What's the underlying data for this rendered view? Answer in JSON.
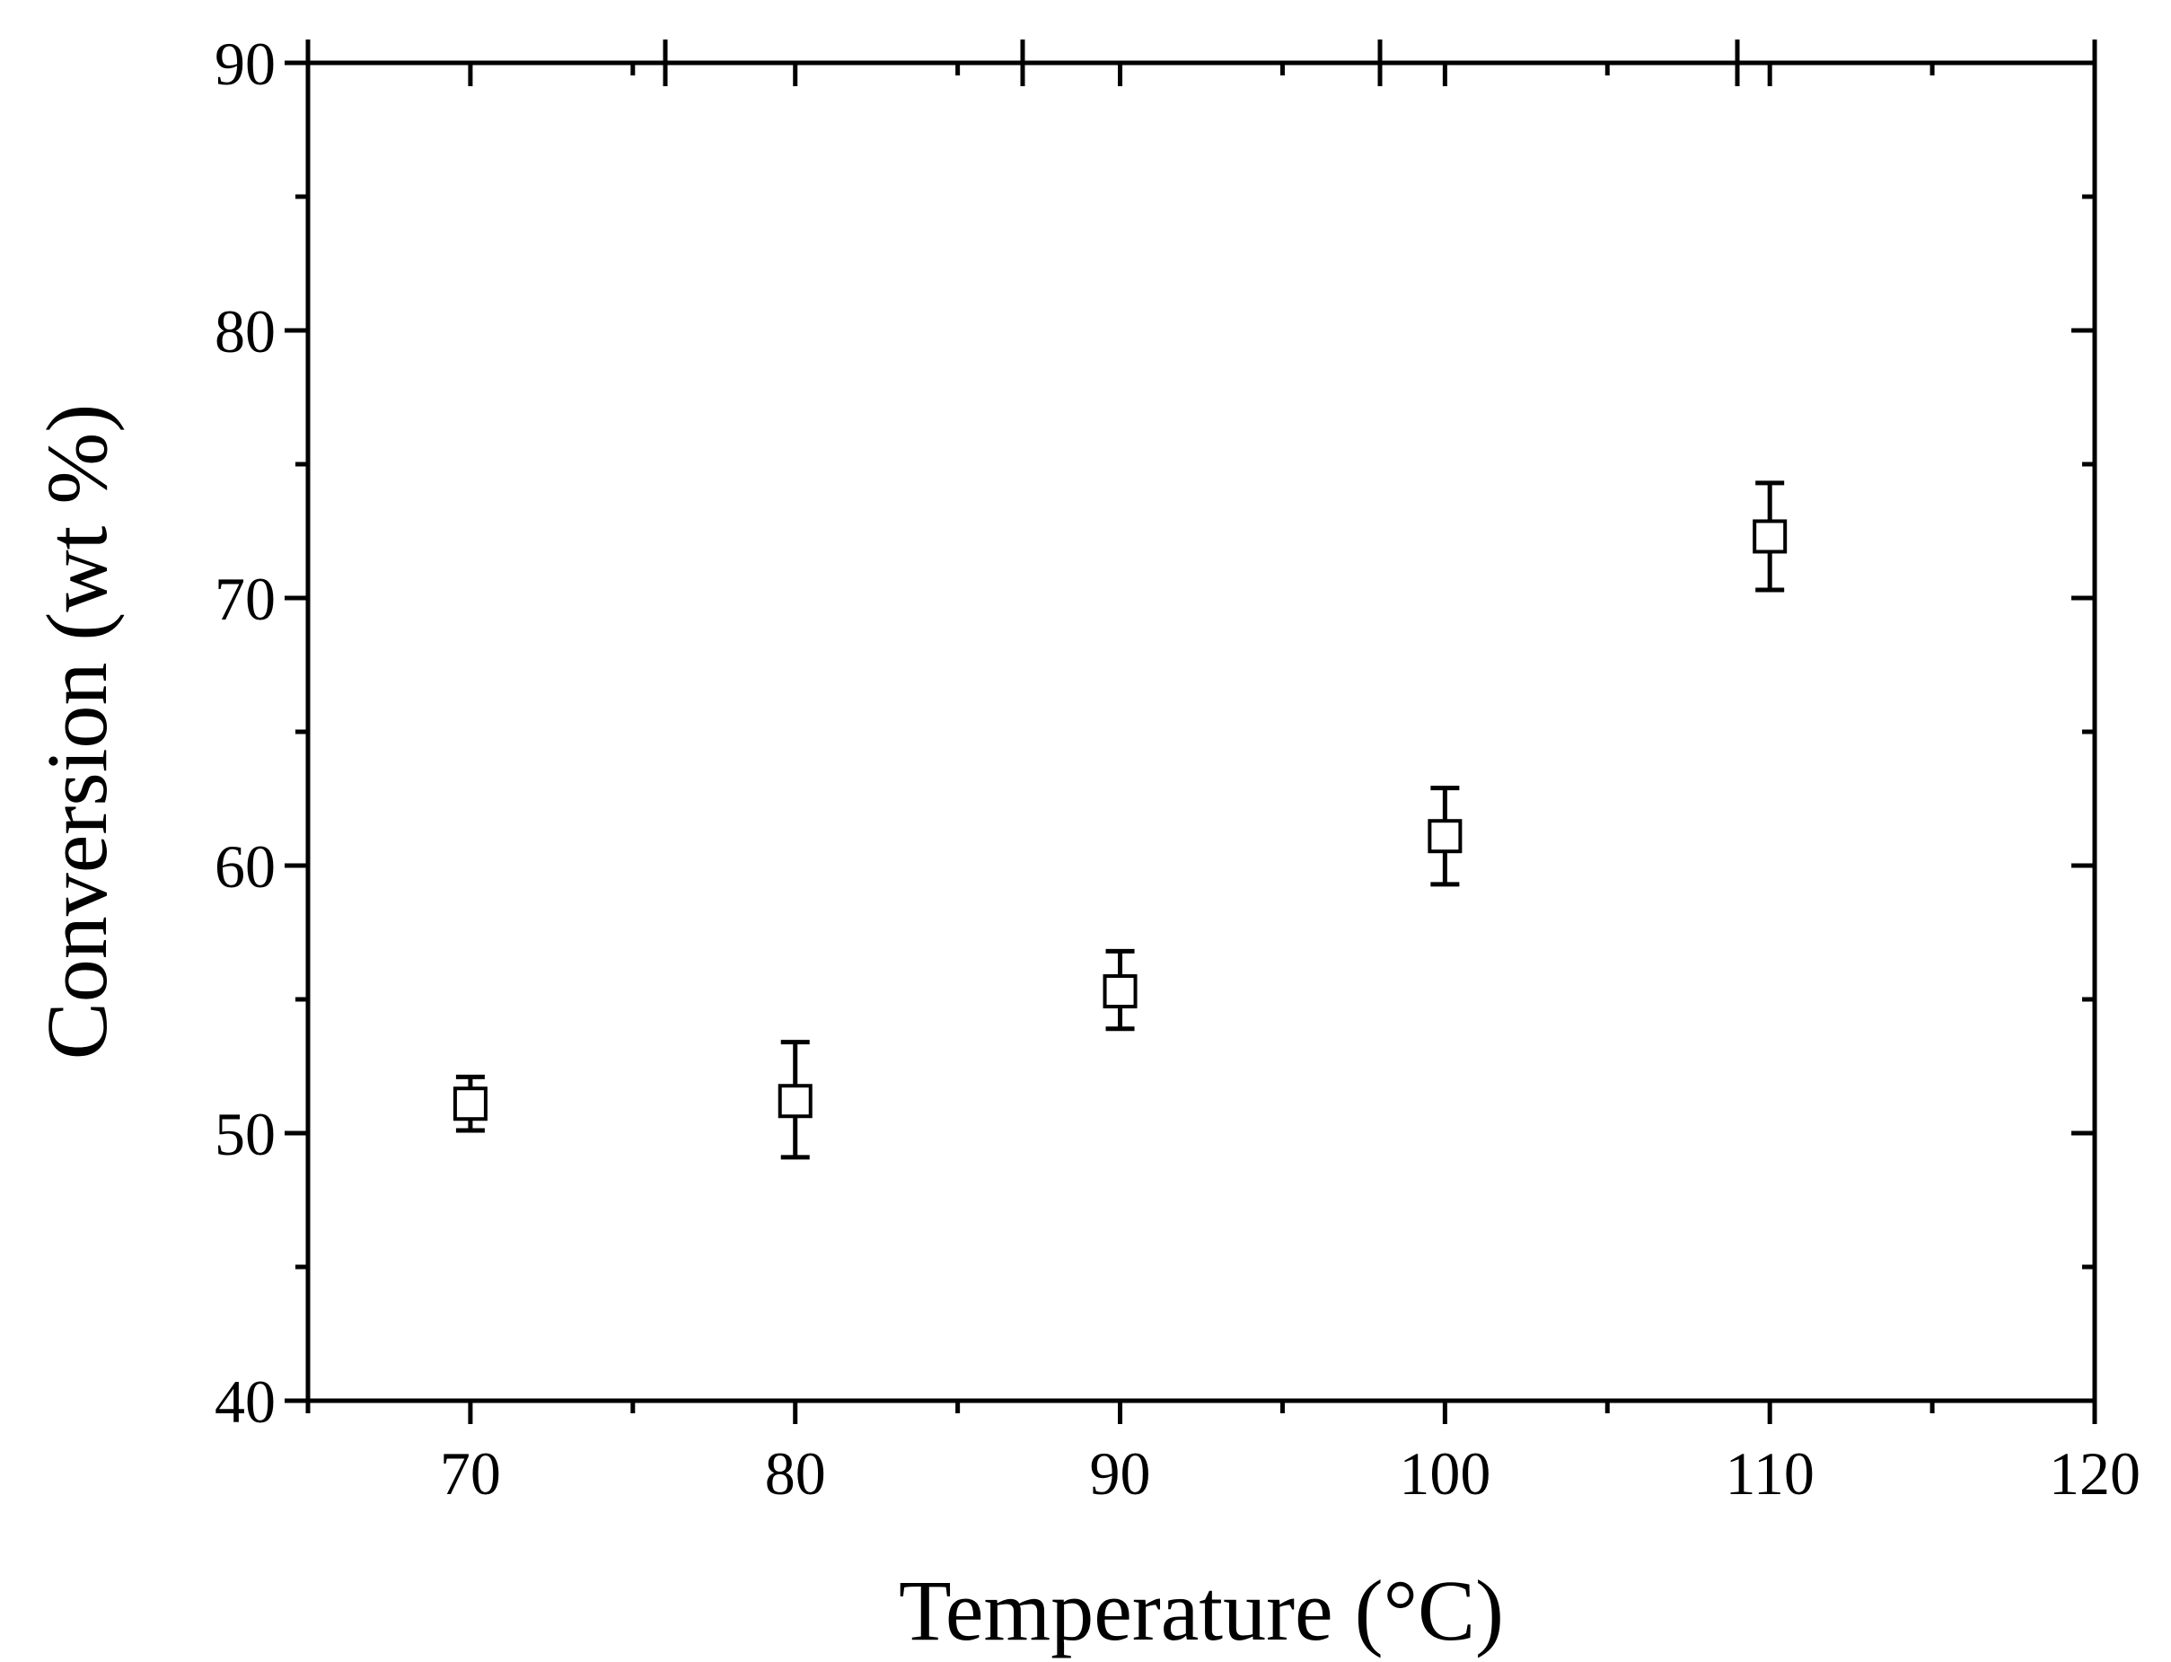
{
  "chart_data": {
    "type": "scatter",
    "title": "",
    "xlabel": "Temperature (°C)",
    "ylabel": "Conversion (wt %)",
    "xlim": [
      65,
      120
    ],
    "ylim": [
      40,
      90
    ],
    "x_ticks": [
      70,
      80,
      90,
      100,
      110,
      120
    ],
    "y_ticks": [
      40,
      50,
      60,
      70,
      80,
      90
    ],
    "x_minor_step": 5,
    "y_minor_step": 5,
    "grid": false,
    "legend": "none",
    "marker": "open-square",
    "series": [
      {
        "x": [
          70,
          80,
          90,
          100,
          110
        ],
        "y": [
          51.1,
          51.2,
          55.3,
          61.1,
          72.3
        ],
        "y_err_low": [
          50.1,
          49.1,
          53.9,
          59.3,
          70.3
        ],
        "y_err_high": [
          52.1,
          53.4,
          56.8,
          62.9,
          74.3
        ]
      }
    ]
  }
}
